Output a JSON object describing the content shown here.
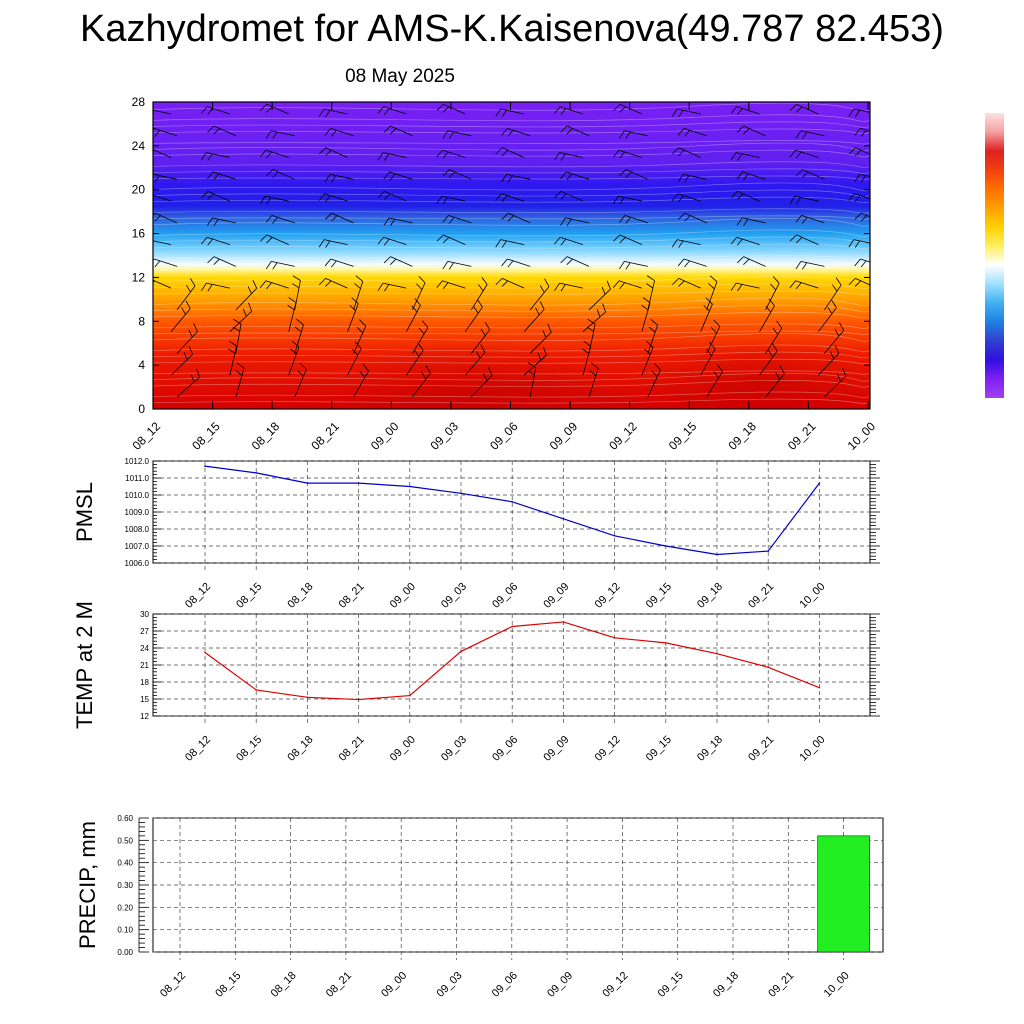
{
  "title": "Kazhydromet for AMS-K.Kaisenova(49.787 82.453)",
  "subtitle": "08 May 2025",
  "colors": {
    "pmsl_line": "#0000cc",
    "temp_line": "#dd0000",
    "precip_bar": "#22ee22",
    "grid": "#444444"
  },
  "chart_data": [
    {
      "type": "heatmap",
      "title": "",
      "xlabel": "",
      "ylabel": "",
      "x": [
        "08_12",
        "08_15",
        "08_18",
        "08_21",
        "09_00",
        "09_03",
        "09_06",
        "09_09",
        "09_12",
        "09_15",
        "09_18",
        "09_21",
        "10_00"
      ],
      "yticks": [
        0,
        4,
        8,
        12,
        16,
        20,
        24,
        28
      ],
      "ylim": [
        0,
        28
      ],
      "colorbar": [
        "#ffe0e0",
        "#f4a0a0",
        "#e02020",
        "#f04010",
        "#ff7000",
        "#ffa000",
        "#ffd000",
        "#fff060",
        "#ffffff",
        "#a0e0ff",
        "#40b0f0",
        "#2080e0",
        "#3040d0",
        "#3010e0",
        "#8020f0",
        "#a040f0"
      ],
      "color_stops": [
        {
          "level": 0,
          "color": "#d40000"
        },
        {
          "level": 5,
          "color": "#ee1c00"
        },
        {
          "level": 8,
          "color": "#ff5800"
        },
        {
          "level": 10,
          "color": "#ffa000"
        },
        {
          "level": 12,
          "color": "#ffd800"
        },
        {
          "level": 12.8,
          "color": "#fff8b0"
        },
        {
          "level": 13.2,
          "color": "#f4fbff"
        },
        {
          "level": 14.5,
          "color": "#80d4ff"
        },
        {
          "level": 16,
          "color": "#20a0f0"
        },
        {
          "level": 17.5,
          "color": "#3060e0"
        },
        {
          "level": 18.5,
          "color": "#2020e8"
        },
        {
          "level": 20.5,
          "color": "#3018f0"
        },
        {
          "level": 22.5,
          "color": "#6020f0"
        },
        {
          "level": 28,
          "color": "#7a20f4"
        }
      ],
      "wind_barbs": true
    },
    {
      "type": "line",
      "title": "",
      "xlabel": "",
      "ylabel": "PMSL",
      "x": [
        "08_12",
        "08_15",
        "08_18",
        "08_21",
        "09_00",
        "09_03",
        "09_06",
        "09_09",
        "09_12",
        "09_15",
        "09_18",
        "09_21",
        "10_00"
      ],
      "yticks": [
        "1006.0",
        "1007.0",
        "1008.0",
        "1009.0",
        "1010.0",
        "1011.0",
        "1012.0"
      ],
      "ylim": [
        1006.0,
        1012.0
      ],
      "series": [
        {
          "values": [
            1011.7,
            1011.3,
            1010.7,
            1010.7,
            1010.5,
            1010.1,
            1009.6,
            1008.6,
            1007.6,
            1007.0,
            1006.5,
            1006.7,
            1010.7
          ]
        }
      ]
    },
    {
      "type": "line",
      "title": "",
      "xlabel": "",
      "ylabel": "TEMP at 2 M",
      "x": [
        "08_12",
        "08_15",
        "08_18",
        "08_21",
        "09_00",
        "09_03",
        "09_06",
        "09_09",
        "09_12",
        "09_15",
        "09_18",
        "09_21",
        "10_00"
      ],
      "yticks": [
        "12",
        "15",
        "18",
        "21",
        "24",
        "27",
        "30"
      ],
      "ylim": [
        12,
        30
      ],
      "series": [
        {
          "values": [
            23.2,
            16.6,
            15.3,
            14.9,
            15.6,
            23.4,
            27.8,
            28.6,
            25.8,
            24.9,
            23.0,
            20.6,
            17.0
          ]
        }
      ]
    },
    {
      "type": "bar",
      "title": "",
      "xlabel": "",
      "ylabel": "PRECIP, mm",
      "categories": [
        "08_12",
        "08_15",
        "08_18",
        "08_21",
        "09_00",
        "09_03",
        "09_06",
        "09_09",
        "09_12",
        "09_15",
        "09_18",
        "09_21",
        "10_00"
      ],
      "yticks": [
        "0.00",
        "0.10",
        "0.20",
        "0.30",
        "0.40",
        "0.50",
        "0.60"
      ],
      "ylim": [
        0,
        0.6
      ],
      "values": [
        0,
        0,
        0,
        0,
        0,
        0,
        0,
        0,
        0,
        0,
        0,
        0,
        0.52
      ]
    }
  ]
}
